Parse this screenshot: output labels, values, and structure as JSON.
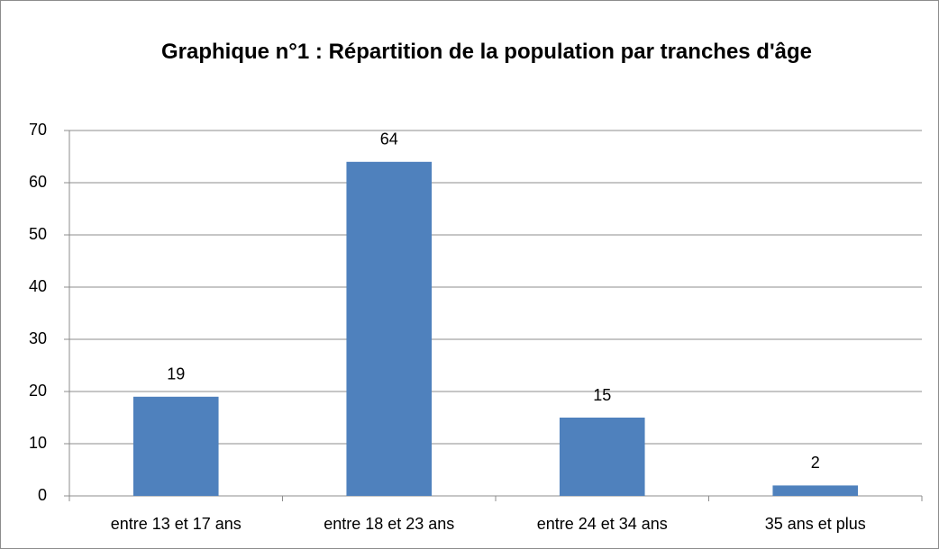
{
  "chart_data": {
    "type": "bar",
    "title": "Graphique n°1 : Répartition de la population par tranches d'âge",
    "categories": [
      "entre 13 et 17 ans",
      "entre 18 et 23 ans",
      "entre 24 et 34 ans",
      "35 ans et plus"
    ],
    "values": [
      19,
      64,
      15,
      2
    ],
    "color": "#4f81bd",
    "ylim": [
      0,
      70
    ],
    "yticks": [
      0,
      10,
      20,
      30,
      40,
      50,
      60,
      70
    ],
    "grid": true
  }
}
